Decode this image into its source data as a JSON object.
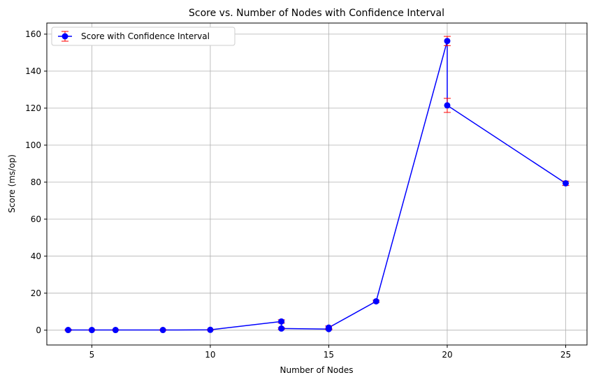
{
  "chart_data": {
    "type": "line",
    "title": "Score vs. Number of Nodes with Confidence Interval",
    "xlabel": "Number of Nodes",
    "ylabel": "Score (ms/op)",
    "xlim": [
      3.1,
      25.9
    ],
    "ylim": [
      -8,
      166
    ],
    "xticks": [
      5,
      10,
      15,
      20,
      25
    ],
    "xtick_labels": [
      "5",
      "10",
      "15",
      "20",
      "25"
    ],
    "yticks": [
      0,
      20,
      40,
      60,
      80,
      100,
      120,
      140,
      160
    ],
    "ytick_labels": [
      "0",
      "20",
      "40",
      "60",
      "80",
      "100",
      "120",
      "140",
      "160"
    ],
    "grid": true,
    "legend_position": "top-left",
    "colors": {
      "line": "#0000ff",
      "marker": "#0000ff",
      "errorbar": "#ff0000",
      "grid": "#b0b0b0"
    },
    "series": [
      {
        "name": "Score with Confidence Interval",
        "x": [
          4,
          5,
          6,
          8,
          10,
          13,
          13,
          15,
          15,
          17,
          20,
          20,
          25
        ],
        "y": [
          0.1,
          0.1,
          0.1,
          0.1,
          0.2,
          4.7,
          0.9,
          0.6,
          1.4,
          15.6,
          156.3,
          121.5,
          79.4
        ],
        "err": [
          0.4,
          0.2,
          0.2,
          0.2,
          0.2,
          0.9,
          0.5,
          0.4,
          0.9,
          0.6,
          2.5,
          3.8,
          1.2
        ]
      }
    ]
  }
}
